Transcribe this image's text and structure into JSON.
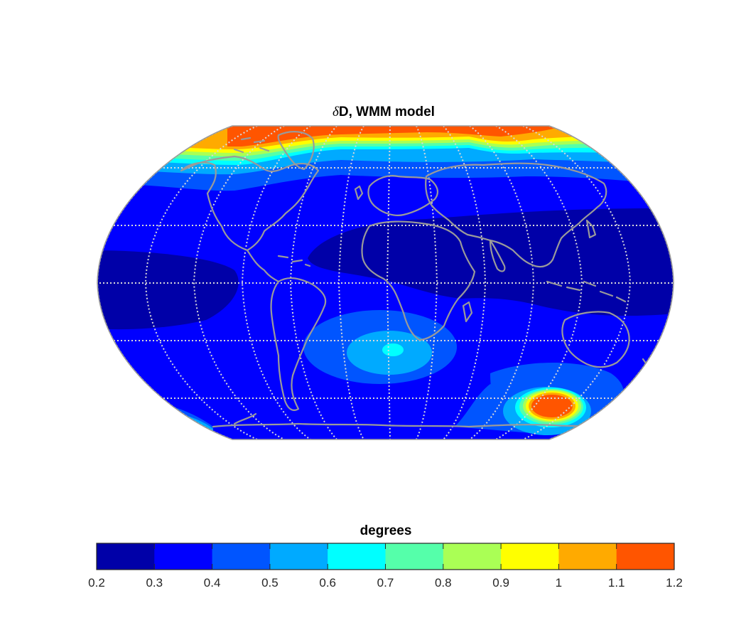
{
  "figure": {
    "title_symbol": "δ",
    "title_rest": "D, WMM model"
  },
  "colorbar": {
    "title": "degrees",
    "ticks": [
      "0.2",
      "0.3",
      "0.4",
      "0.5",
      "0.6",
      "0.7",
      "0.8",
      "0.9",
      "1",
      "1.1",
      "1.2"
    ],
    "colors": [
      "#0000a8",
      "#0000ff",
      "#0055ff",
      "#00aaff",
      "#00ffff",
      "#55ffaa",
      "#aaff55",
      "#ffff00",
      "#ffaa00",
      "#ff5500"
    ]
  },
  "map": {
    "projection": "Robinson",
    "grid": true,
    "graticule_lon_step_deg": 30,
    "graticule_lat_step_deg": 20,
    "field_levels": [
      {
        "region": "background",
        "value_range": [
          0.3,
          0.4
        ]
      },
      {
        "region": "tropical-lows",
        "value_range": [
          0.2,
          0.3
        ]
      },
      {
        "region": "arctic-band",
        "value_range": [
          0.4,
          1.2
        ]
      },
      {
        "region": "south-atlantic-anomaly",
        "value_range": [
          0.4,
          0.7
        ]
      },
      {
        "region": "antarctic-maximum",
        "value_range": [
          0.4,
          1.2
        ]
      }
    ],
    "colors": {
      "coast": "#9a9a9a",
      "graticule": "#d9d9d9",
      "frame": "#9a9a9a"
    }
  }
}
